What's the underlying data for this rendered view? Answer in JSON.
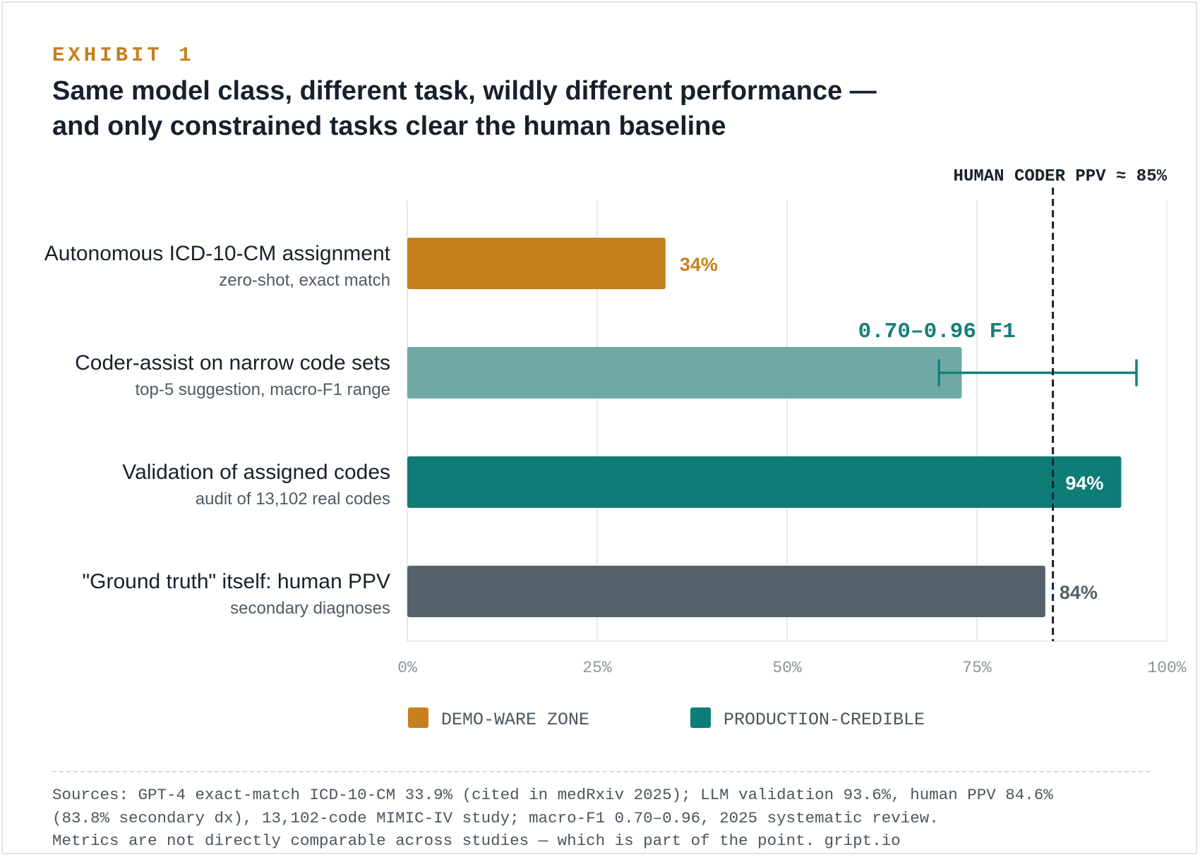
{
  "header": {
    "exhibit": "EXHIBIT 1",
    "title_line1": "Same model class, different task, wildly different performance —",
    "title_line2": "and only constrained tasks clear the human baseline"
  },
  "colors": {
    "demo": "#c6801d",
    "coder_assist": "#6fa9a5",
    "production": "#0f7c78",
    "baseline": "#53626d",
    "grid": "#e6e9ec",
    "errorbar": "#167f7a"
  },
  "chart_data": {
    "type": "bar",
    "orientation": "horizontal",
    "categories": [
      "Autonomous ICD-10-CM assignment",
      "Coder-assist on narrow code sets",
      "Validation of assigned codes",
      "\"Ground truth\" itself: human PPV"
    ],
    "subtitles": [
      "zero-shot, exact match",
      "top-5 suggestion, macro-F1 range",
      "audit of 13,102 real codes",
      "secondary diagnoses"
    ],
    "values": [
      34,
      73,
      94,
      84
    ],
    "value_labels": [
      "34%",
      "",
      "94%",
      "84%"
    ],
    "error_range": {
      "bar_index": 1,
      "low": 70,
      "high": 96,
      "label": "0.70–0.96 F1"
    },
    "bar_colors": [
      "#c6801d",
      "#6fa9a5",
      "#0f7c78",
      "#53626d"
    ],
    "label_colors": [
      "#c6801d",
      "#167f7a",
      "#ffffff",
      "#53626d"
    ],
    "label_inside": [
      false,
      false,
      true,
      false
    ],
    "xlim": [
      0,
      100
    ],
    "x_ticks": [
      0,
      25,
      50,
      75,
      100
    ],
    "x_tick_labels": [
      "0%",
      "25%",
      "50%",
      "75%",
      "100%"
    ],
    "reference_line": {
      "value": 85,
      "label": "HUMAN CODER PPV ≈ 85%",
      "style": "dashed"
    },
    "legend": [
      {
        "label": "DEMO-WARE ZONE",
        "color": "#c6801d"
      },
      {
        "label": "PRODUCTION-CREDIBLE",
        "color": "#0f7c78"
      }
    ],
    "grid": true,
    "legend_position": "bottom"
  },
  "footer": {
    "sources_line1": "Sources: GPT-4 exact-match ICD-10-CM 33.9% (cited in medRxiv 2025); LLM validation 93.6%, human PPV 84.6%",
    "sources_line2": "(83.8% secondary dx), 13,102-code MIMIC-IV study; macro-F1 0.70–0.96, 2025 systematic review.",
    "sources_line3": "Metrics are not directly comparable across studies — which is part of the point. gript.io"
  }
}
